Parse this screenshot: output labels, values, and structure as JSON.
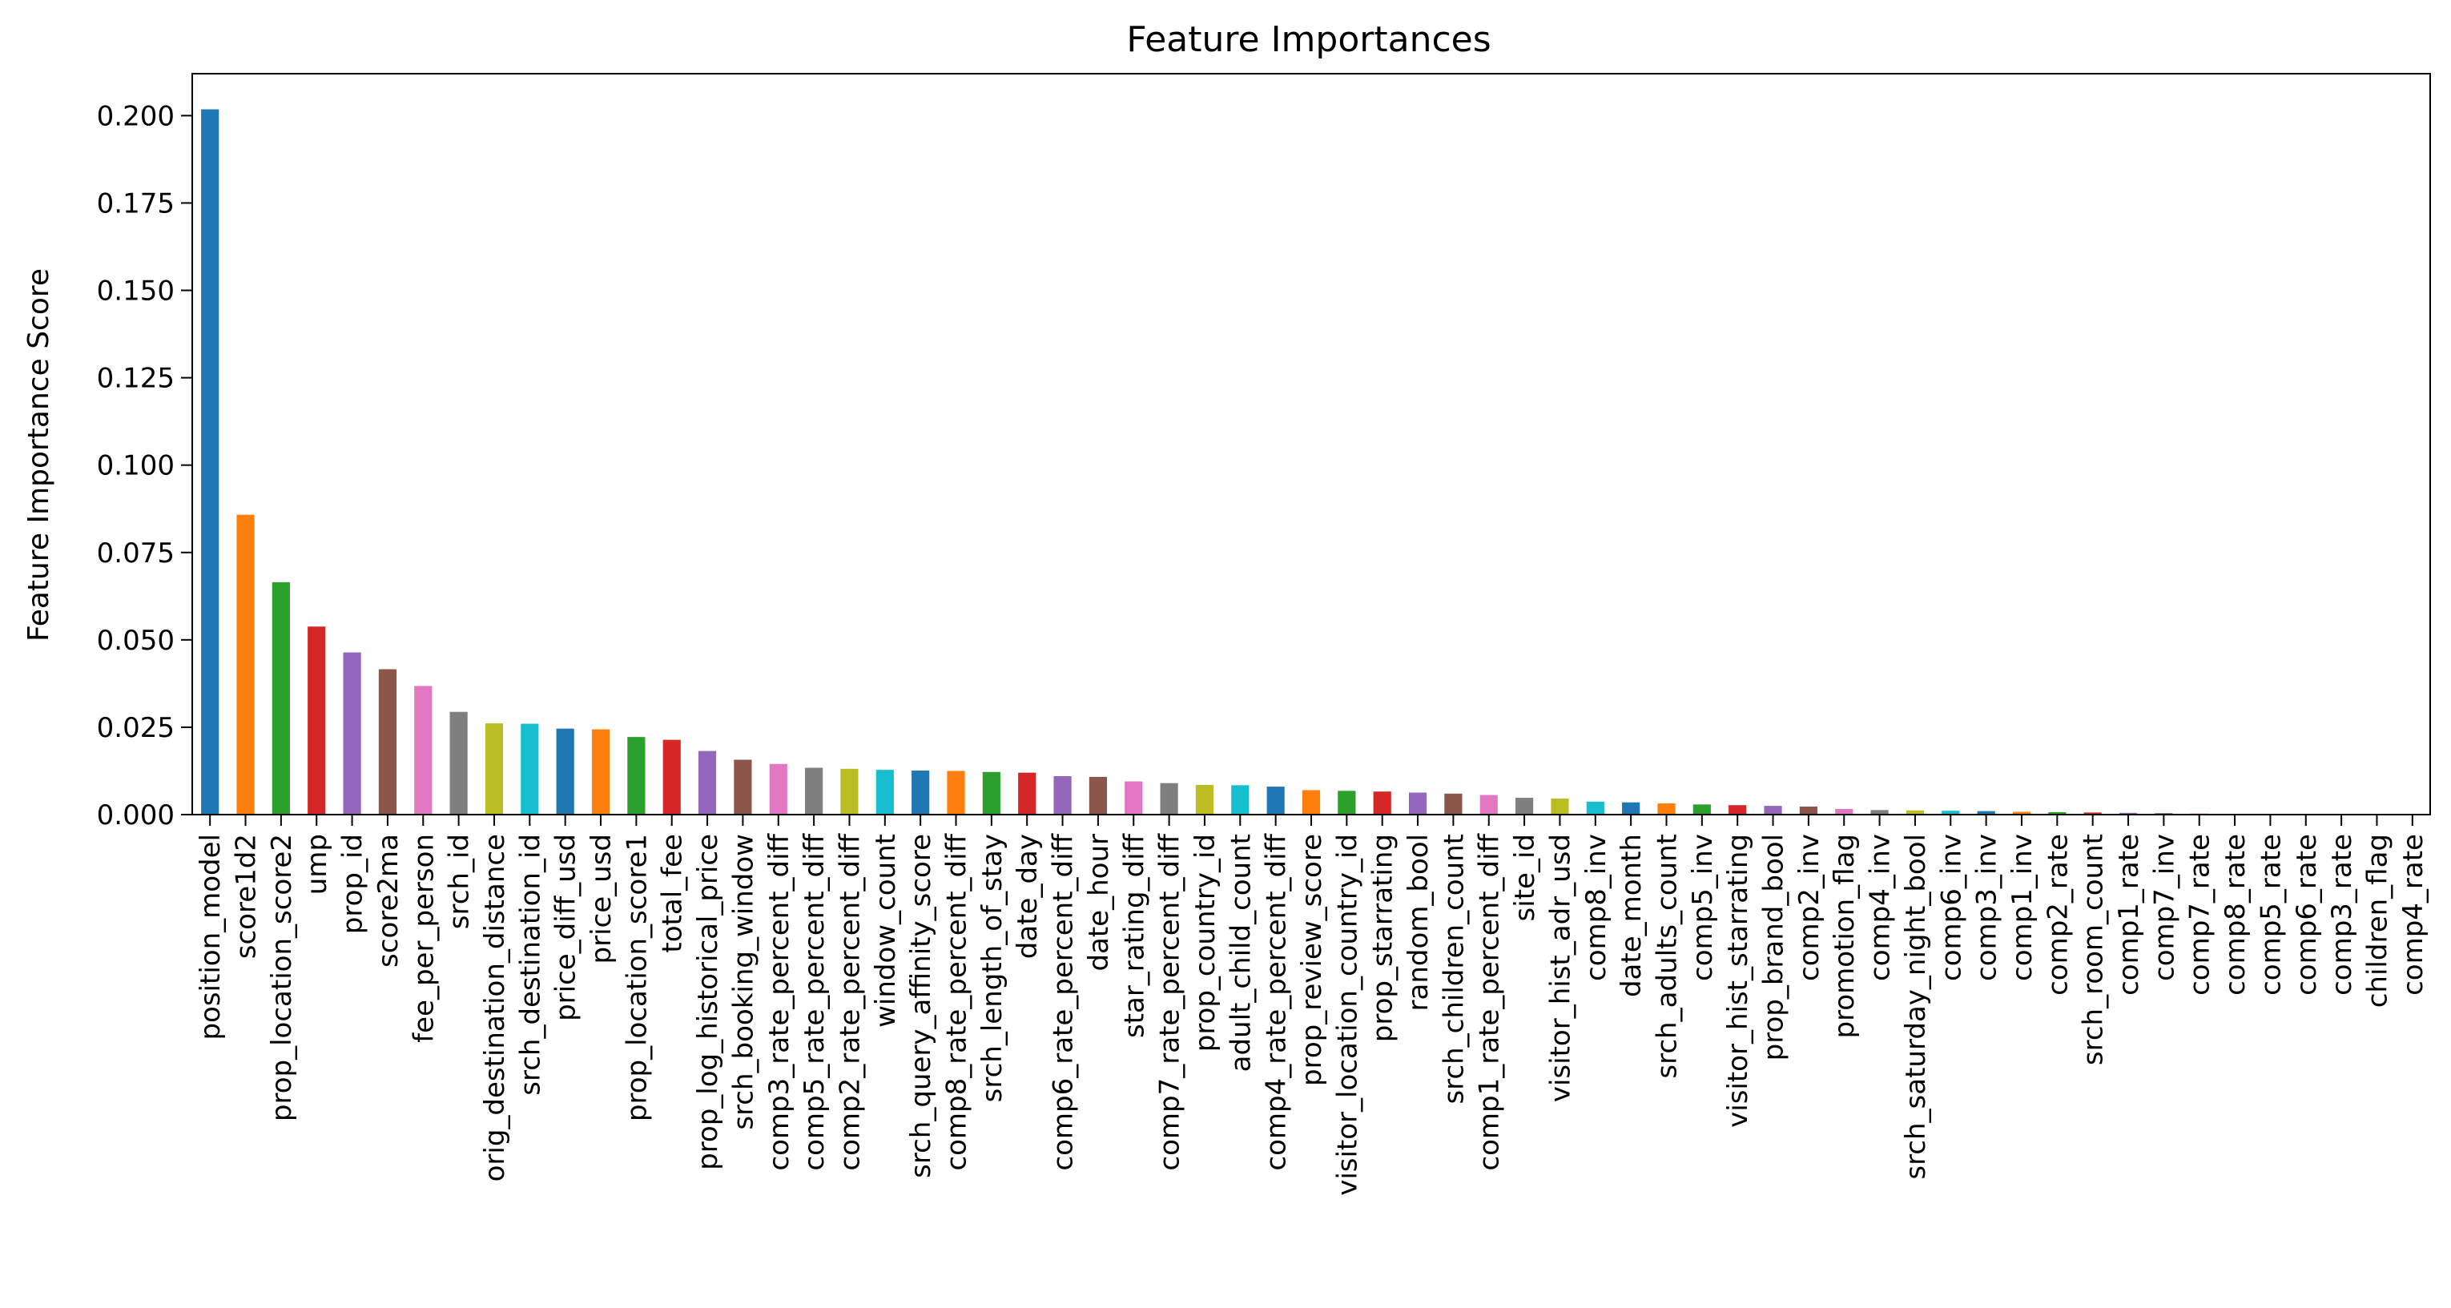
{
  "chart_data": {
    "type": "bar",
    "title": "Feature Importances",
    "xlabel": "",
    "ylabel": "Feature Importance Score",
    "ylim": [
      0,
      0.212
    ],
    "yticks": [
      "0.000",
      "0.025",
      "0.050",
      "0.075",
      "0.100",
      "0.125",
      "0.150",
      "0.175",
      "0.200"
    ],
    "grid": false,
    "legend": "none",
    "categories": [
      "position_model",
      "score1d2",
      "prop_location_score2",
      "ump",
      "prop_id",
      "score2ma",
      "fee_per_person",
      "srch_id",
      "orig_destination_distance",
      "srch_destination_id",
      "price_diff_usd",
      "price_usd",
      "prop_location_score1",
      "total_fee",
      "prop_log_historical_price",
      "srch_booking_window",
      "comp3_rate_percent_diff",
      "comp5_rate_percent_diff",
      "comp2_rate_percent_diff",
      "window_count",
      "srch_query_affinity_score",
      "comp8_rate_percent_diff",
      "srch_length_of_stay",
      "date_day",
      "comp6_rate_percent_diff",
      "date_hour",
      "star_rating_diff",
      "comp7_rate_percent_diff",
      "prop_country_id",
      "adult_child_count",
      "comp4_rate_percent_diff",
      "prop_review_score",
      "visitor_location_country_id",
      "prop_starrating",
      "random_bool",
      "srch_children_count",
      "comp1_rate_percent_diff",
      "site_id",
      "visitor_hist_adr_usd",
      "comp8_inv",
      "date_month",
      "srch_adults_count",
      "comp5_inv",
      "visitor_hist_starrating",
      "prop_brand_bool",
      "comp2_inv",
      "promotion_flag",
      "comp4_inv",
      "srch_saturday_night_bool",
      "comp6_inv",
      "comp3_inv",
      "comp1_inv",
      "comp2_rate",
      "srch_room_count",
      "comp1_rate",
      "comp7_inv",
      "comp7_rate",
      "comp8_rate",
      "comp5_rate",
      "comp6_rate",
      "comp3_rate",
      "children_flag",
      "comp4_rate"
    ],
    "values": [
      0.2018,
      0.0858,
      0.0665,
      0.0538,
      0.0464,
      0.0416,
      0.0368,
      0.0294,
      0.0261,
      0.026,
      0.0246,
      0.0244,
      0.0222,
      0.0214,
      0.0182,
      0.0157,
      0.0145,
      0.0134,
      0.0131,
      0.0128,
      0.0126,
      0.0125,
      0.0122,
      0.012,
      0.011,
      0.0108,
      0.0095,
      0.009,
      0.0085,
      0.0084,
      0.008,
      0.007,
      0.0068,
      0.0066,
      0.0063,
      0.006,
      0.0056,
      0.0048,
      0.0046,
      0.0037,
      0.0035,
      0.0032,
      0.0029,
      0.0027,
      0.0025,
      0.0023,
      0.0016,
      0.0013,
      0.0012,
      0.0011,
      0.001,
      0.0008,
      0.0007,
      0.0006,
      0.0005,
      0.0004,
      0.0003,
      0.0002,
      0.0002,
      0.0002,
      0.0001,
      0.0001,
      0.0001
    ],
    "colors": [
      "#1f77b4",
      "#ff7f0e",
      "#2ca02c",
      "#d62728",
      "#9467bd",
      "#8c564b",
      "#e377c2",
      "#7f7f7f",
      "#bcbd22",
      "#17becf"
    ]
  }
}
